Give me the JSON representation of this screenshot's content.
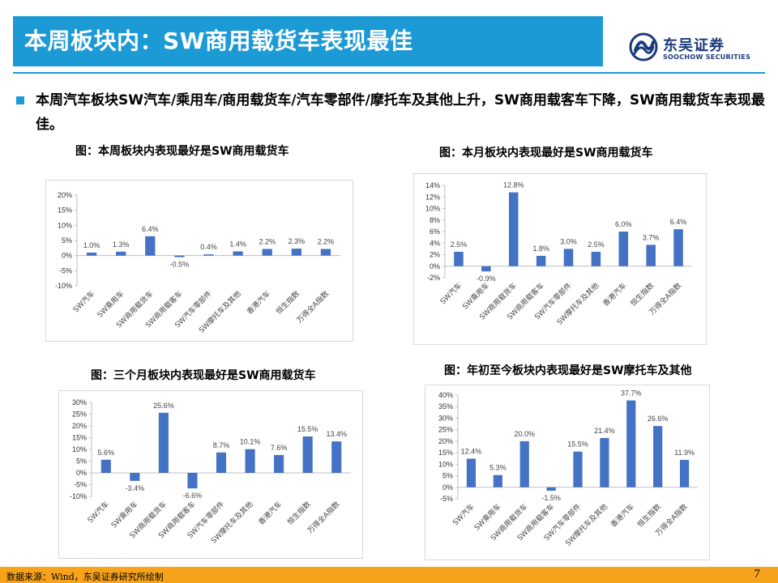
{
  "header": {
    "title": "本周板块内：SW商用载货车表现最佳",
    "logo_cn": "东吴证券",
    "logo_en": "SOOCHOW SECURITIES"
  },
  "bullet": "本周汽车板块SW汽车/乘用车/商用载货车/汽车零部件/摩托车及其他上升，SW商用载客车下降，SW商用载货车表现最佳。",
  "footer": {
    "source": "数据来源：Wind，东吴证券研究所绘制",
    "page_number": "7"
  },
  "colors": {
    "bar": "#4472c4",
    "title_bar": "#1c9ad6",
    "footer": "#f7a21b"
  },
  "chart_data": [
    {
      "type": "bar",
      "caption": "图：本周板块内表现最好是SW商用载货车",
      "categories": [
        "SW汽车",
        "SW乘用车",
        "SW商用载货车",
        "SW商用载客车",
        "SW汽车零部件",
        "SW摩托车及其他",
        "香港汽车",
        "恒生指数",
        "万得全A指数"
      ],
      "values": [
        1.0,
        1.3,
        6.4,
        -0.5,
        0.4,
        1.4,
        2.2,
        2.3,
        2.2
      ],
      "value_labels": [
        "1.0%",
        "1.3%",
        "6.4%",
        "-0.5%",
        "0.4%",
        "1.4%",
        "2.2%",
        "2.3%",
        "2.2%"
      ],
      "ylim": [
        -10,
        20
      ],
      "yticks": [
        -10,
        -5,
        0,
        5,
        10,
        15,
        20
      ],
      "ytick_labels": [
        "-10%",
        "-5%",
        "0%",
        "5%",
        "10%",
        "15%",
        "20%"
      ]
    },
    {
      "type": "bar",
      "caption": "图：本月板块内表现最好是SW商用载货车",
      "categories": [
        "SW汽车",
        "SW乘用车",
        "SW商用载货车",
        "SW商用载客车",
        "SW汽车零部件",
        "SW摩托车及其他",
        "香港汽车",
        "恒生指数",
        "万得全A指数"
      ],
      "values": [
        2.5,
        -0.9,
        12.8,
        1.8,
        3.0,
        2.5,
        6.0,
        3.7,
        6.4
      ],
      "value_labels": [
        "2.5%",
        "-0.9%",
        "12.8%",
        "1.8%",
        "3.0%",
        "2.5%",
        "6.0%",
        "3.7%",
        "6.4%"
      ],
      "ylim": [
        -2,
        14
      ],
      "yticks": [
        -2,
        0,
        2,
        4,
        6,
        8,
        10,
        12,
        14
      ],
      "ytick_labels": [
        "-2%",
        "0%",
        "2%",
        "4%",
        "6%",
        "8%",
        "10%",
        "12%",
        "14%"
      ]
    },
    {
      "type": "bar",
      "caption": "图：三个月板块内表现最好是SW商用载货车",
      "categories": [
        "SW汽车",
        "SW乘用车",
        "SW商用载货车",
        "SW商用载客车",
        "SW汽车零部件",
        "SW摩托车及其他",
        "香港汽车",
        "恒生指数",
        "万得全A指数"
      ],
      "values": [
        5.6,
        -3.4,
        25.6,
        -6.6,
        8.7,
        10.1,
        7.6,
        15.5,
        13.4
      ],
      "value_labels": [
        "5.6%",
        "-3.4%",
        "25.6%",
        "-6.6%",
        "8.7%",
        "10.1%",
        "7.6%",
        "15.5%",
        "13.4%"
      ],
      "ylim": [
        -10,
        30
      ],
      "yticks": [
        -10,
        -5,
        0,
        5,
        10,
        15,
        20,
        25,
        30
      ],
      "ytick_labels": [
        "-10%",
        "-5%",
        "0%",
        "5%",
        "10%",
        "15%",
        "20%",
        "25%",
        "30%"
      ]
    },
    {
      "type": "bar",
      "caption": "图：年初至今板块内表现最好是SW摩托车及其他",
      "categories": [
        "SW汽车",
        "SW乘用车",
        "SW商用载货车",
        "SW商用载客车",
        "SW汽车零部件",
        "SW摩托车及其他",
        "香港汽车",
        "恒生指数",
        "万得全A指数"
      ],
      "values": [
        12.4,
        5.3,
        20.0,
        -1.5,
        15.5,
        21.4,
        37.7,
        26.6,
        11.9
      ],
      "value_labels": [
        "12.4%",
        "5.3%",
        "20.0%",
        "-1.5%",
        "15.5%",
        "21.4%",
        "37.7%",
        "26.6%",
        "11.9%"
      ],
      "ylim": [
        -5,
        40
      ],
      "yticks": [
        -5,
        0,
        5,
        10,
        15,
        20,
        25,
        30,
        35,
        40
      ],
      "ytick_labels": [
        "-5%",
        "0%",
        "5%",
        "10%",
        "15%",
        "20%",
        "25%",
        "30%",
        "35%",
        "40%"
      ]
    }
  ]
}
